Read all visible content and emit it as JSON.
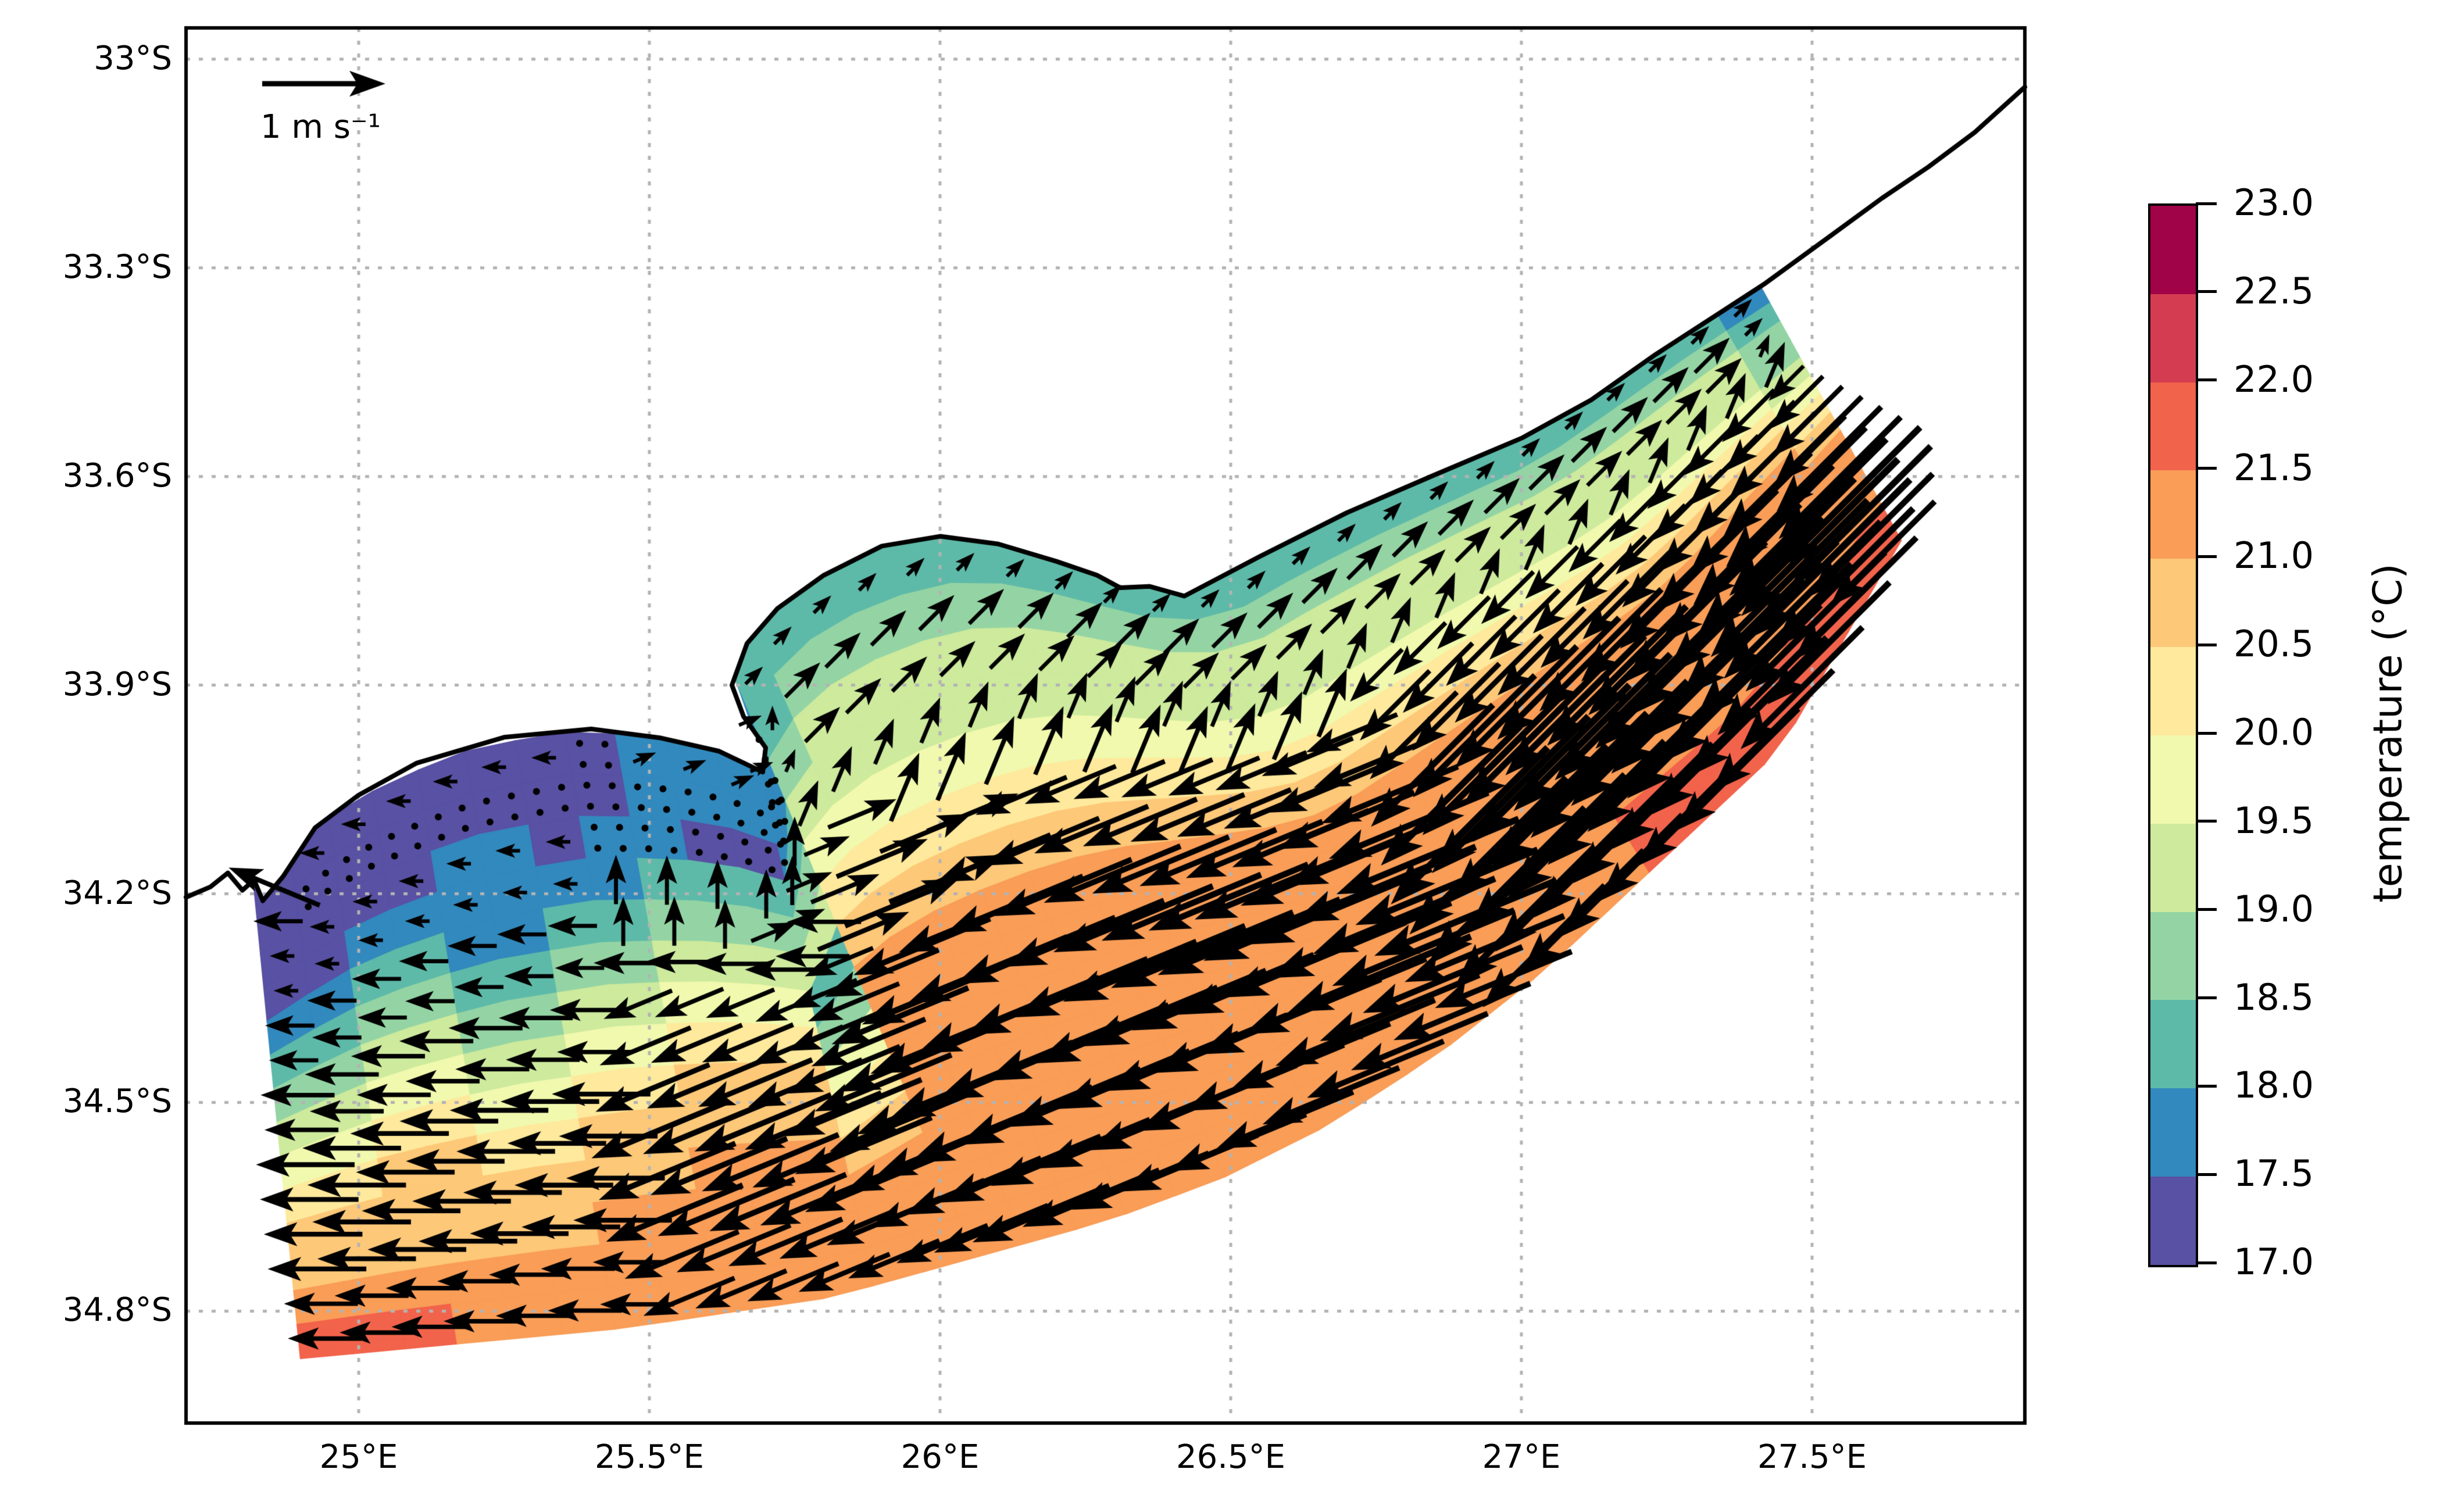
{
  "chart_data": {
    "type": "heatmap",
    "subtype": "sea-surface-temperature map with current-velocity quiver overlay",
    "title": "",
    "xlabel": "",
    "ylabel": "",
    "x_ticks": {
      "values": [
        25.0,
        25.5,
        26.0,
        26.5,
        27.0,
        27.5
      ],
      "labels": [
        "25°E",
        "25.5°E",
        "26°E",
        "26.5°E",
        "27°E",
        "27.5°E"
      ]
    },
    "y_ticks": {
      "values": [
        33.0,
        33.3,
        33.6,
        33.9,
        34.2,
        34.5,
        34.8
      ],
      "labels": [
        "33°S",
        "33.3°S",
        "33.6°S",
        "33.9°S",
        "34.2°S",
        "34.5°S",
        "34.8°S"
      ]
    },
    "lon_range": [
      24.703,
      27.866
    ],
    "lat_range": [
      32.955,
      34.961
    ],
    "grid_on": true,
    "colorbar": {
      "title": "temperature (°C)",
      "levels": [
        17.0,
        17.5,
        18.0,
        18.5,
        19.0,
        19.5,
        20.0,
        20.5,
        21.0,
        21.5,
        22.0,
        22.5,
        23.0
      ],
      "tick_labels_top_to_bottom": [
        "23.0",
        "22.5",
        "22.0",
        "21.5",
        "21.0",
        "20.5",
        "20.0",
        "19.5",
        "19.0",
        "18.5",
        "18.0",
        "17.5",
        "17.0"
      ],
      "band_colors_low_to_high": [
        "#5951a3",
        "#3289bd",
        "#5ebaa8",
        "#94d4a4",
        "#cdea9d",
        "#f0f9ad",
        "#fee99c",
        "#fdc878",
        "#f99d57",
        "#f2634b",
        "#d43d51",
        "#a00347"
      ]
    },
    "reference_vector": {
      "label": "1 m s⁻¹",
      "speed_m_per_s": 1
    },
    "coastline_lonlat": [
      [
        24.703,
        34.205
      ],
      [
        24.745,
        34.19
      ],
      [
        24.775,
        34.17
      ],
      [
        24.8,
        34.195
      ],
      [
        24.82,
        34.18
      ],
      [
        24.835,
        34.21
      ],
      [
        24.87,
        34.175
      ],
      [
        24.925,
        34.105
      ],
      [
        25.0,
        34.058
      ],
      [
        25.1,
        34.012
      ],
      [
        25.25,
        33.975
      ],
      [
        25.4,
        33.963
      ],
      [
        25.52,
        33.976
      ],
      [
        25.62,
        33.995
      ],
      [
        25.695,
        34.025
      ],
      [
        25.7,
        33.99
      ],
      [
        25.662,
        33.945
      ],
      [
        25.642,
        33.9
      ],
      [
        25.668,
        33.84
      ],
      [
        25.72,
        33.79
      ],
      [
        25.8,
        33.742
      ],
      [
        25.9,
        33.7
      ],
      [
        26.0,
        33.686
      ],
      [
        26.1,
        33.697
      ],
      [
        26.2,
        33.722
      ],
      [
        26.27,
        33.742
      ],
      [
        26.31,
        33.76
      ],
      [
        26.36,
        33.758
      ],
      [
        26.42,
        33.772
      ],
      [
        26.55,
        33.715
      ],
      [
        26.7,
        33.652
      ],
      [
        26.85,
        33.598
      ],
      [
        27.0,
        33.545
      ],
      [
        27.12,
        33.49
      ],
      [
        27.23,
        33.425
      ],
      [
        27.35,
        33.36
      ],
      [
        27.42,
        33.322
      ],
      [
        27.53,
        33.255
      ],
      [
        27.62,
        33.2
      ],
      [
        27.7,
        33.155
      ],
      [
        27.78,
        33.105
      ],
      [
        27.866,
        33.04
      ]
    ],
    "model_grid": {
      "description": "curvilinear coastal model grid; rows run inshore→offshore, columns run west→east along the coast",
      "n_along": 36,
      "n_cross": 14,
      "inshore_boundary_lonlat": [
        [
          24.82,
          34.19
        ],
        [
          24.93,
          34.1
        ],
        [
          25.05,
          34.04
        ],
        [
          25.2,
          33.99
        ],
        [
          25.37,
          33.966
        ],
        [
          25.52,
          33.976
        ],
        [
          25.62,
          33.995
        ],
        [
          25.695,
          34.025
        ],
        [
          25.685,
          33.97
        ],
        [
          25.655,
          33.925
        ],
        [
          25.645,
          33.88
        ],
        [
          25.68,
          33.825
        ],
        [
          25.745,
          33.768
        ],
        [
          25.84,
          33.72
        ],
        [
          25.96,
          33.688
        ],
        [
          26.06,
          33.69
        ],
        [
          26.16,
          33.71
        ],
        [
          26.27,
          33.74
        ],
        [
          26.36,
          33.762
        ],
        [
          26.46,
          33.758
        ],
        [
          26.55,
          33.715
        ],
        [
          26.7,
          33.652
        ],
        [
          26.85,
          33.598
        ],
        [
          27.0,
          33.545
        ],
        [
          27.15,
          33.462
        ],
        [
          27.28,
          33.39
        ],
        [
          27.41,
          33.325
        ]
      ],
      "offshore_boundary_lonlat": [
        [
          24.9,
          34.868
        ],
        [
          25.45,
          34.825
        ],
        [
          25.813,
          34.78
        ],
        [
          26.287,
          34.67
        ],
        [
          26.482,
          34.61
        ],
        [
          26.664,
          34.534
        ],
        [
          26.859,
          34.429
        ],
        [
          27.041,
          34.309
        ],
        [
          27.223,
          34.166
        ],
        [
          27.444,
          33.993
        ],
        [
          27.653,
          33.692
        ]
      ],
      "temp_convention": "char = colorbar band index in hex: 1=17.0–17.5°C, 2=17.5–18.0, … 9=21.0–21.5, a=21.5–22.0, b=22.0–22.5, c=22.5–23.0",
      "temp_band_rows_inshore_to_offshore": [
        "111111112222233333333333333333333332",
        "111111112222234444444444444444444443",
        "111122122112245555555555555555555554",
        "112222223333355555555555555555555554",
        "223322334444466666666666666666666665",
        "334433445555577777777777777777777776",
        "445544556663388888888888888888888887",
        "556655667774499999999999999999999998",
        "667766778886699999999999999999999999",
        "778877888887799999999999999999999999",
        "888888889998899999999999999999999999",
        "888888999999999999999999999999999999",
        "9999999999999999999999999999aaaaaaaa",
        "aaa9999999999999999999999999aaaaaaaa"
      ],
      "speed_convention": "char 0–9, speed = char × 0.2 m s⁻¹ (0 = stagnant, drawn as dot)",
      "speed_rows_inshore_to_offshore": [
        "411111101111111111111111111111111111",
        "200000000000012222222222222222222221",
        "111111100000012222222222222222222221",
        "111111122222222222222222222222222222",
        "222222222222223333333333333333333332",
        "222222233333334444444444444444444443",
        "333333333333345555555555555555555554",
        "333333344444456666666666677777777775",
        "444444455555567777777777788888888886",
        "444444466666678888888888899999999997",
        "444444466666678888888888899999999998",
        "444444466666678888888888899999999998",
        "333333355555567777777777788888888887",
        "333333344444456666666666677777777776"
      ],
      "dir_convention": "hex char × 22.5°, 0 = toward east, counter-clockwise (4=N, 8=W, a=SW)",
      "dir_rows_inshore_to_offshore": [
        "788888881111122222222222222222222222",
        "844444444444442222222222222222222222",
        "888888844444432222222222222222222223",
        "888888844444433333333333333333333333",
        "8888888444111113333333333aaaaaaaaaaa",
        "8888888888888111199999999aaaaaaaaaaa",
        "8888888999999111999999999aaaaaaaaaaa",
        "8888888999999999999999999aaaaaaaaaaa",
        "8888888999999999999999999aaaaaaaaaaa",
        "8888888999999999999999999aaaaaaaaaaa",
        "8888888999999999999999999aaaaaaaaaaa",
        "8888888999999999999999999aaaaaaaaaaa",
        "8888888999999999999999999aaaaaaaaaaa",
        "8888888999999999999999999aaaaaaaaaaa"
      ]
    }
  }
}
